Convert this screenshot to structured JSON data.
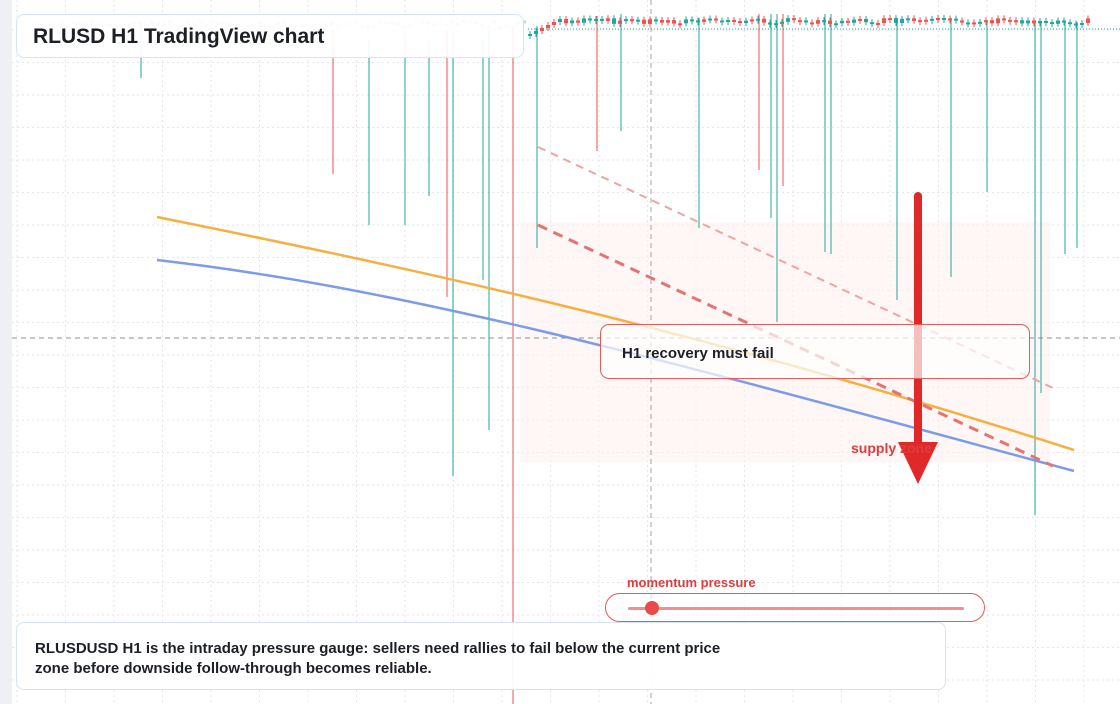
{
  "title": "RLUSD H1 TradingView chart",
  "callout": "H1 recovery must fail",
  "zone_label": "supply zone",
  "momentum_label": "momentum pressure",
  "momentum_level": 0.07,
  "note": "RLUSDUSD H1 is the intraday pressure gauge: sellers need rallies to fail below the current price zone before downside follow-through becomes reliable.",
  "colors": {
    "bull": "#26a69a",
    "bear": "#ef5350",
    "accent_red": "#e53935",
    "ma_fast": "#f5b041",
    "ma_slow": "#7d9ce8"
  },
  "chart_data": {
    "type": "candlestick",
    "series": [
      {
        "name": "price",
        "style": "candles"
      },
      {
        "style": "moving-average",
        "color": "#f5b041"
      },
      {
        "style": "moving-average",
        "color": "#7d9ce8"
      }
    ],
    "annotations": [
      "H1 recovery must fail",
      "supply zone",
      "momentum pressure"
    ]
  }
}
